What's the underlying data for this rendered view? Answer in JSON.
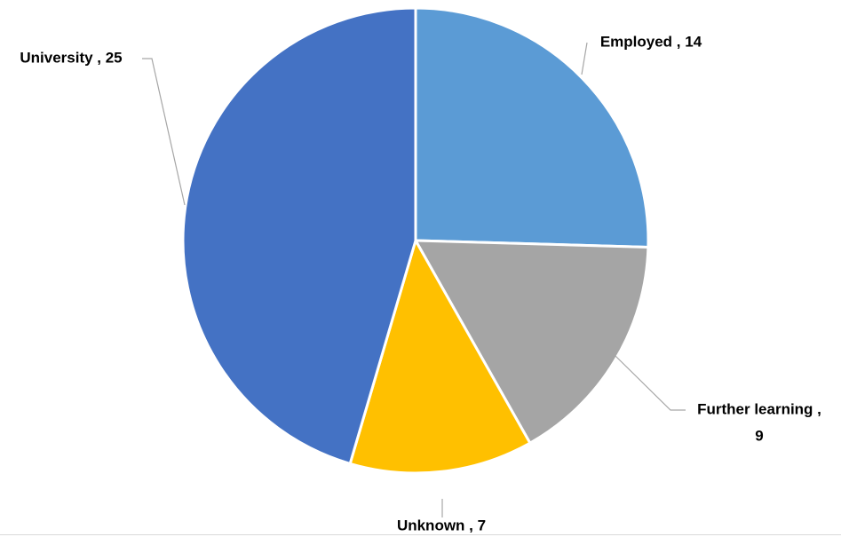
{
  "chart_data": {
    "type": "pie",
    "categories": [
      "Employed",
      "Further learning",
      "Unknown",
      "University"
    ],
    "values": [
      14,
      9,
      7,
      25
    ],
    "colors": [
      "#5B9BD5",
      "#A5A5A5",
      "#FFC000",
      "#4472C4"
    ],
    "data_labels": [
      [
        "Employed , 14"
      ],
      [
        "Further learning ,",
        "9"
      ],
      [
        "Unknown , 7"
      ],
      [
        "University , 25"
      ]
    ],
    "title": "",
    "start_angle": "12 o'clock",
    "direction": "clockwise",
    "slice_border_color": "#FFFFFF",
    "leader_line_color": "#A6A6A6",
    "legend": "none"
  }
}
